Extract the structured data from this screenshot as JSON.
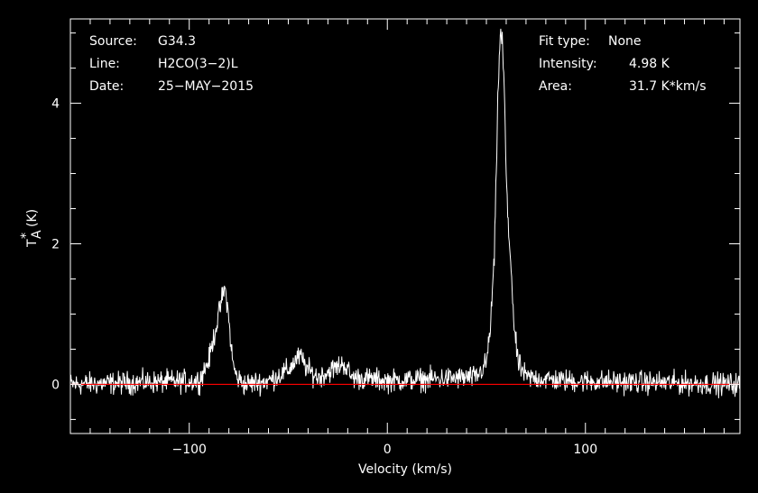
{
  "info": {
    "source_label": "Source:",
    "source_value": "G34.3",
    "line_label": "Line:",
    "line_value": "H2CO(3−2)L",
    "date_label": "Date:",
    "date_value": "25−MAY−2015",
    "fit_label": "Fit type:",
    "fit_value": "None",
    "intensity_label": "Intensity:",
    "intensity_value": "4.98 K",
    "area_label": "Area:",
    "area_value": "31.7 K*km/s"
  },
  "axes": {
    "xlabel": "Velocity (km/s)",
    "ylabel_main": "T",
    "ylabel_sup": "*",
    "ylabel_sub": "A",
    "ylabel_unit": "(K)"
  },
  "colors": {
    "background": "#000000",
    "spectrum": "#ffffff",
    "baseline": "#ff0000",
    "frame": "#ffffff"
  },
  "chart_data": {
    "type": "line",
    "xlabel": "Velocity (km/s)",
    "ylabel": "T_A* (K)",
    "xlim": [
      -160,
      178
    ],
    "ylim": [
      -0.7,
      5.2
    ],
    "x_ticks": [
      -100,
      0,
      100
    ],
    "y_ticks": [
      0,
      2,
      4
    ],
    "grid": false,
    "baseline": 0,
    "noise_rms": 0.08,
    "series": [
      {
        "x": [
          -160,
          -95,
          -90,
          -87,
          -85,
          -84,
          -83,
          -82,
          -81,
          -80,
          -79,
          -78,
          -76,
          -72,
          -60,
          -50,
          -46,
          -44,
          -42,
          -40,
          -35,
          -25,
          -22,
          -20,
          -18,
          0,
          45,
          50,
          52,
          54,
          55,
          56,
          57,
          58,
          59,
          60,
          61,
          62,
          63,
          64,
          66,
          70,
          90,
          178
        ],
        "y": [
          0.0,
          0.05,
          0.35,
          0.75,
          1.0,
          1.15,
          1.28,
          1.35,
          1.2,
          0.9,
          0.6,
          0.3,
          0.1,
          0.0,
          0.05,
          0.2,
          0.35,
          0.4,
          0.3,
          0.2,
          0.1,
          0.25,
          0.3,
          0.2,
          0.1,
          0.05,
          0.1,
          0.3,
          0.8,
          1.8,
          3.0,
          4.3,
          4.98,
          4.9,
          4.2,
          3.0,
          2.2,
          1.9,
          1.4,
          0.8,
          0.3,
          0.1,
          0.05,
          0.0
        ]
      }
    ]
  }
}
